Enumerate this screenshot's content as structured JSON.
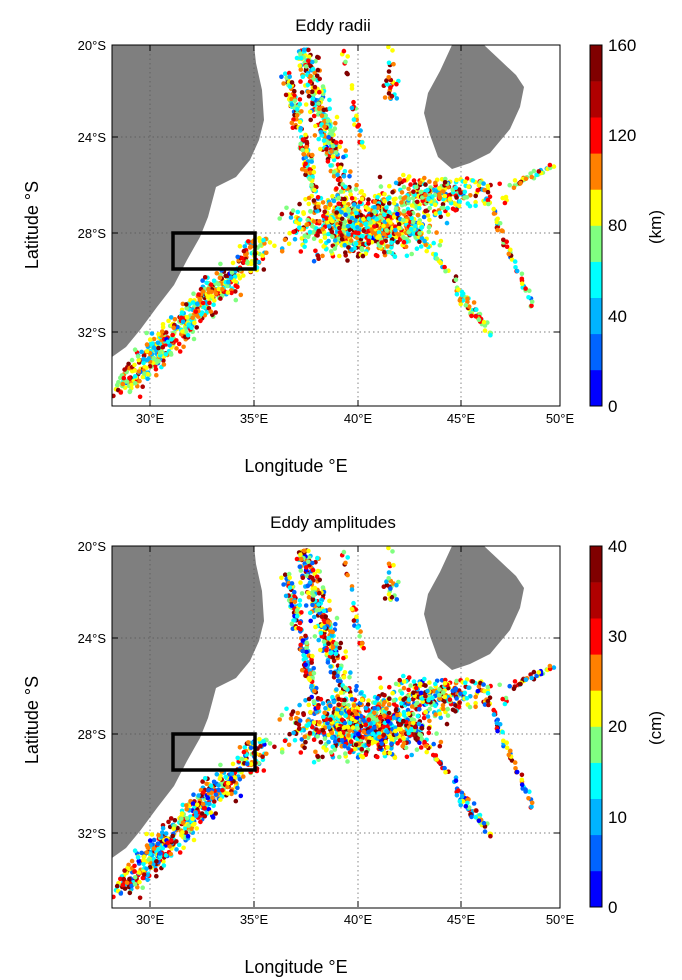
{
  "figure": {
    "panels": [
      {
        "id": "radii",
        "title": "Eddy radii",
        "xlabel": "Longitude °E",
        "ylabel": "Latitude °S",
        "colorbar": {
          "unit": "(km)",
          "ticks": [
            "0",
            "40",
            "80",
            "120",
            "160"
          ],
          "min": 0,
          "max": 160
        }
      },
      {
        "id": "amplitudes",
        "title": "Eddy amplitudes",
        "xlabel": "Longitude °E",
        "ylabel": "Latitude °S",
        "colorbar": {
          "unit": "(cm)",
          "ticks": [
            "0",
            "10",
            "20",
            "30",
            "40"
          ],
          "min": 0,
          "max": 40
        }
      }
    ],
    "x_ticks": [
      "30°E",
      "35°E",
      "40°E",
      "45°E",
      "50°E"
    ],
    "y_ticks": [
      "20°S",
      "24°S",
      "28°S",
      "32°S"
    ]
  },
  "chart_data": [
    {
      "type": "scatter",
      "title": "Eddy radii",
      "xlabel": "Longitude °E",
      "ylabel": "Latitude °S",
      "xlim": [
        28,
        50
      ],
      "ylim": [
        -34.8,
        -20
      ],
      "grid": true,
      "colorbar": {
        "label": "(km)",
        "range": [
          0,
          160
        ],
        "bands": 10
      },
      "region_box": {
        "lon": [
          31,
          35
        ],
        "lat": [
          -29.5,
          -28
        ]
      },
      "land": [
        "Africa",
        "Madagascar"
      ],
      "points": "eddy track points (several thousand, radii 0-160 km)"
    },
    {
      "type": "scatter",
      "title": "Eddy amplitudes",
      "xlabel": "Longitude °E",
      "ylabel": "Latitude °S",
      "xlim": [
        28,
        50
      ],
      "ylim": [
        -34.8,
        -20
      ],
      "grid": true,
      "colorbar": {
        "label": "(cm)",
        "range": [
          0,
          40
        ],
        "bands": 10
      },
      "region_box": {
        "lon": [
          31,
          35
        ],
        "lat": [
          -29.5,
          -28
        ]
      },
      "land": [
        "Africa",
        "Madagascar"
      ],
      "points": "eddy track points (several thousand, amplitudes 0-40 cm)"
    }
  ],
  "colors": {
    "land": "#7f7f7f",
    "box": "#000000",
    "jet": [
      "#0000ff",
      "#0080ff",
      "#00ffff",
      "#80ff80",
      "#ffff00",
      "#ff8000",
      "#ff0000",
      "#800000"
    ]
  }
}
